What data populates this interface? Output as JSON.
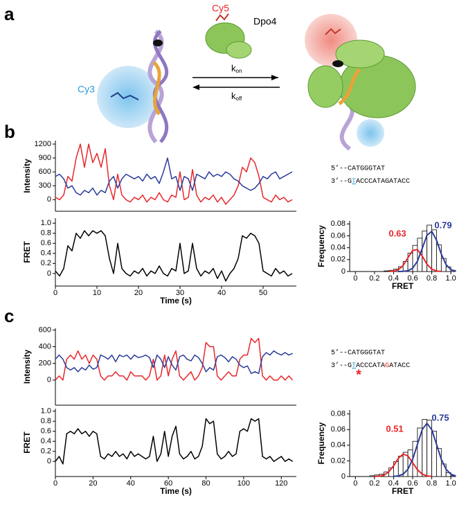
{
  "figure": {
    "panel_labels": [
      "a",
      "b",
      "c"
    ],
    "diagram": {
      "cy5": "Cy5",
      "dpo4": "Dpo4",
      "cy3": "Cy3",
      "k_on": [
        "k",
        "on"
      ],
      "k_off": [
        "k",
        "off"
      ]
    },
    "sequences": {
      "b": {
        "top": "5’--CATGGGTAT",
        "bottom": [
          "3’--G",
          "T",
          "ACCCATAGATACC"
        ]
      },
      "c": {
        "top": "5’--CATGGGTAT",
        "bottom": [
          "3’--G",
          "T",
          "ACCCATA",
          "G",
          "ATACC"
        ],
        "mark": "*"
      }
    }
  },
  "chart_data": [
    {
      "type": "line",
      "ylabel": "Intensity",
      "xlim": [
        0,
        58
      ],
      "ylim": [
        -250,
        1275
      ],
      "yticks": [
        0,
        300,
        600,
        900,
        1200
      ],
      "x": [
        0,
        1,
        2,
        3,
        4,
        5,
        6,
        7,
        8,
        9,
        10,
        11,
        12,
        13,
        14,
        15,
        16,
        17,
        18,
        19,
        20,
        21,
        22,
        23,
        24,
        25,
        26,
        27,
        28,
        29,
        30,
        31,
        32,
        33,
        34,
        35,
        36,
        37,
        38,
        39,
        40,
        41,
        42,
        43,
        44,
        45,
        46,
        47,
        48,
        49,
        50,
        51,
        52,
        53,
        54,
        55,
        56,
        57
      ],
      "series": [
        {
          "color": "#e8262a",
          "values": [
            50,
            0,
            100,
            500,
            400,
            900,
            1200,
            700,
            1200,
            800,
            1000,
            700,
            1100,
            300,
            0,
            550,
            100,
            0,
            -50,
            50,
            0,
            100,
            -50,
            50,
            0,
            150,
            0,
            -50,
            100,
            50,
            600,
            0,
            50,
            650,
            100,
            -50,
            50,
            0,
            100,
            -50,
            50,
            -100,
            0,
            100,
            300,
            700,
            600,
            900,
            800,
            500,
            50,
            0,
            -50,
            100,
            0,
            50,
            -50,
            0
          ]
        },
        {
          "color": "#2a3b9a",
          "values": [
            500,
            550,
            450,
            250,
            300,
            150,
            100,
            200,
            150,
            250,
            100,
            200,
            150,
            400,
            500,
            250,
            450,
            550,
            500,
            450,
            500,
            400,
            550,
            450,
            500,
            350,
            600,
            900,
            450,
            500,
            200,
            500,
            450,
            200,
            550,
            500,
            450,
            600,
            500,
            550,
            500,
            600,
            550,
            450,
            400,
            300,
            250,
            200,
            250,
            350,
            500,
            450,
            550,
            600,
            450,
            500,
            550,
            600
          ]
        }
      ]
    },
    {
      "type": "line",
      "ylabel": "FRET",
      "xlabel": "Time (s)",
      "xlim": [
        0,
        58
      ],
      "ylim": [
        -0.25,
        1.1
      ],
      "yticks": [
        0,
        0.2,
        0.4,
        0.6,
        0.8,
        {
          "value": 1,
          "label": "1.0"
        }
      ],
      "xticks": [
        0,
        10,
        20,
        30,
        40,
        50
      ],
      "x": [
        0,
        1,
        2,
        3,
        4,
        5,
        6,
        7,
        8,
        9,
        10,
        11,
        12,
        13,
        14,
        15,
        16,
        17,
        18,
        19,
        20,
        21,
        22,
        23,
        24,
        25,
        26,
        27,
        28,
        29,
        30,
        31,
        32,
        33,
        34,
        35,
        36,
        37,
        38,
        39,
        40,
        41,
        42,
        43,
        44,
        45,
        46,
        47,
        48,
        49,
        50,
        51,
        52,
        53,
        54,
        55,
        56,
        57
      ],
      "series": [
        {
          "color": "#000000",
          "values": [
            0.05,
            -0.05,
            0.1,
            0.55,
            0.45,
            0.8,
            0.7,
            0.85,
            0.75,
            0.85,
            0.8,
            0.85,
            0.75,
            0.3,
            0.0,
            0.6,
            0.1,
            0.0,
            -0.05,
            0.05,
            0.0,
            0.1,
            -0.05,
            0.05,
            0.0,
            0.15,
            0.0,
            -0.05,
            0.1,
            0.05,
            0.6,
            0.0,
            0.05,
            0.6,
            0.1,
            -0.05,
            0.05,
            0.0,
            0.1,
            -0.1,
            0.05,
            -0.15,
            0.0,
            0.1,
            0.3,
            0.75,
            0.7,
            0.8,
            0.75,
            0.6,
            0.05,
            0.0,
            -0.05,
            0.1,
            0.0,
            0.05,
            -0.05,
            0.0
          ]
        }
      ]
    },
    {
      "type": "histogram",
      "ylabel": "Frequency",
      "xlabel": "FRET",
      "xlim": [
        -0.06,
        1.05
      ],
      "ylim": [
        0,
        0.085
      ],
      "xticks": [
        0,
        0.2,
        0.4,
        0.6,
        0.8,
        {
          "value": 1,
          "label": "1.0"
        }
      ],
      "yticks": [
        0,
        0.02,
        0.04,
        0.06,
        0.08
      ],
      "bins": [
        0,
        0.05,
        0.1,
        0.15,
        0.2,
        0.25,
        0.3,
        0.35,
        0.4,
        0.45,
        0.5,
        0.55,
        0.6,
        0.65,
        0.7,
        0.75,
        0.8,
        0.85,
        0.9,
        0.95,
        1.0,
        1.05
      ],
      "values": [
        0,
        0,
        0,
        0,
        0,
        0,
        0.001,
        0.002,
        0.004,
        0.008,
        0.017,
        0.031,
        0.044,
        0.056,
        0.068,
        0.078,
        0.07,
        0.045,
        0.022,
        0.008,
        0.002
      ],
      "color": "#ffffff",
      "edgecolor": "#000000",
      "fits": [
        {
          "color": "#e8262a",
          "x": [
            0.35,
            0.4,
            0.45,
            0.5,
            0.55,
            0.6,
            0.65,
            0.7,
            0.75,
            0.8,
            0.85,
            0.9
          ],
          "values": [
            0.0001,
            0.0006,
            0.003,
            0.0101,
            0.023,
            0.0354,
            0.0368,
            0.0259,
            0.0123,
            0.004,
            0.0009,
            0.0001
          ]
        },
        {
          "color": "#2a3b9a",
          "x": [
            0.45,
            0.5,
            0.55,
            0.6,
            0.65,
            0.7,
            0.75,
            0.8,
            0.85,
            0.9,
            0.95,
            1.0,
            1.05
          ],
          "values": [
            0,
            0.0002,
            0.0013,
            0.0056,
            0.0175,
            0.0388,
            0.0609,
            0.0675,
            0.053,
            0.0294,
            0.0116,
            0.0032,
            0.0006
          ]
        }
      ],
      "annotations": [
        {
          "text": "0.63",
          "color": "#e8262a"
        },
        {
          "text": "0.79",
          "color": "#2a3b9a"
        }
      ]
    },
    {
      "type": "line",
      "ylabel": "Intensity",
      "xlim": [
        0,
        128
      ],
      "ylim": [
        -300,
        620
      ],
      "yticks": [
        0,
        200,
        400,
        600
      ],
      "x": [
        0,
        2,
        4,
        6,
        8,
        10,
        12,
        14,
        16,
        18,
        20,
        22,
        24,
        26,
        28,
        30,
        32,
        34,
        36,
        38,
        40,
        42,
        44,
        46,
        48,
        50,
        52,
        54,
        56,
        58,
        60,
        62,
        64,
        66,
        68,
        70,
        72,
        74,
        76,
        78,
        80,
        82,
        84,
        86,
        88,
        90,
        92,
        94,
        96,
        98,
        100,
        102,
        104,
        106,
        108,
        110,
        112,
        114,
        116,
        118,
        120,
        122,
        124,
        126
      ],
      "series": [
        {
          "color": "#e8262a",
          "values": [
            0,
            50,
            0,
            250,
            300,
            250,
            350,
            250,
            300,
            200,
            300,
            250,
            50,
            0,
            50,
            50,
            100,
            50,
            50,
            0,
            100,
            50,
            50,
            50,
            0,
            50,
            250,
            0,
            50,
            300,
            50,
            250,
            350,
            50,
            0,
            50,
            100,
            0,
            50,
            150,
            450,
            400,
            400,
            50,
            0,
            50,
            100,
            50,
            50,
            250,
            300,
            300,
            500,
            450,
            500,
            50,
            0,
            50,
            0,
            0,
            50,
            0,
            50,
            0
          ]
        },
        {
          "color": "#2a3b9a",
          "values": [
            250,
            300,
            250,
            150,
            120,
            150,
            100,
            150,
            120,
            180,
            130,
            150,
            300,
            280,
            250,
            300,
            220,
            300,
            280,
            300,
            250,
            300,
            270,
            280,
            300,
            270,
            150,
            300,
            250,
            150,
            280,
            180,
            120,
            280,
            300,
            250,
            230,
            300,
            270,
            200,
            100,
            150,
            120,
            280,
            300,
            270,
            220,
            280,
            250,
            180,
            150,
            170,
            80,
            100,
            80,
            280,
            330,
            300,
            350,
            320,
            300,
            330,
            300,
            320
          ]
        }
      ]
    },
    {
      "type": "line",
      "ylabel": "FRET",
      "xlabel": "Time (s)",
      "xlim": [
        0,
        128
      ],
      "ylim": [
        -0.3,
        1.05
      ],
      "yticks": [
        0,
        0.2,
        0.4,
        0.6,
        0.8,
        {
          "value": 1,
          "label": "1.0"
        }
      ],
      "xticks": [
        0,
        20,
        40,
        60,
        80,
        100,
        120
      ],
      "x": [
        0,
        2,
        4,
        6,
        8,
        10,
        12,
        14,
        16,
        18,
        20,
        22,
        24,
        26,
        28,
        30,
        32,
        34,
        36,
        38,
        40,
        42,
        44,
        46,
        48,
        50,
        52,
        54,
        56,
        58,
        60,
        62,
        64,
        66,
        68,
        70,
        72,
        74,
        76,
        78,
        80,
        82,
        84,
        86,
        88,
        90,
        92,
        94,
        96,
        98,
        100,
        102,
        104,
        106,
        108,
        110,
        112,
        114,
        116,
        118,
        120,
        122,
        124,
        126
      ],
      "series": [
        {
          "color": "#000000",
          "values": [
            0.0,
            0.1,
            -0.05,
            0.55,
            0.6,
            0.55,
            0.65,
            0.55,
            0.6,
            0.5,
            0.6,
            0.55,
            0.1,
            0.05,
            0.15,
            0.1,
            0.2,
            0.1,
            0.15,
            0.05,
            0.2,
            0.1,
            0.15,
            0.1,
            0.05,
            0.1,
            0.5,
            0.0,
            0.15,
            0.6,
            0.1,
            0.5,
            0.7,
            0.15,
            0.05,
            0.1,
            0.2,
            0.05,
            0.1,
            0.3,
            0.85,
            0.75,
            0.8,
            0.15,
            0.05,
            0.1,
            0.2,
            0.1,
            0.15,
            0.6,
            0.65,
            0.6,
            0.85,
            0.8,
            0.85,
            0.1,
            0.05,
            0.1,
            0.0,
            0.05,
            0.1,
            0.0,
            0.05,
            0.0
          ]
        }
      ]
    },
    {
      "type": "histogram",
      "ylabel": "Frequency",
      "xlabel": "FRET",
      "xlim": [
        -0.06,
        1.05
      ],
      "ylim": [
        0,
        0.085
      ],
      "xticks": [
        0,
        0.2,
        0.4,
        0.6,
        0.8,
        {
          "value": 1,
          "label": "1.0"
        }
      ],
      "yticks": [
        0,
        0.02,
        0.04,
        0.06,
        0.08
      ],
      "bins": [
        0,
        0.05,
        0.1,
        0.15,
        0.2,
        0.25,
        0.3,
        0.35,
        0.4,
        0.45,
        0.5,
        0.55,
        0.6,
        0.65,
        0.7,
        0.75,
        0.8,
        0.85,
        0.9,
        0.95,
        1.0,
        1.05
      ],
      "values": [
        0,
        0,
        0,
        0.001,
        0.002,
        0.003,
        0.006,
        0.011,
        0.019,
        0.026,
        0.031,
        0.034,
        0.045,
        0.062,
        0.073,
        0.072,
        0.058,
        0.036,
        0.016,
        0.005,
        0.001
      ],
      "color": "#ffffff",
      "edgecolor": "#000000",
      "fits": [
        {
          "color": "#e8262a",
          "x": [
            0.2,
            0.25,
            0.3,
            0.35,
            0.4,
            0.45,
            0.5,
            0.55,
            0.6,
            0.65,
            0.7,
            0.75,
            0.8
          ],
          "values": [
            0.0001,
            0.0004,
            0.0019,
            0.006,
            0.0137,
            0.0232,
            0.0288,
            0.0263,
            0.0176,
            0.0086,
            0.0031,
            0.0008,
            0.0002
          ]
        },
        {
          "color": "#2a3b9a",
          "x": [
            0.4,
            0.45,
            0.5,
            0.55,
            0.6,
            0.65,
            0.7,
            0.75,
            0.8,
            0.85,
            0.9,
            0.95,
            1.0,
            1.05
          ],
          "values": [
            0.0002,
            0.0008,
            0.003,
            0.0092,
            0.0221,
            0.0413,
            0.06,
            0.068,
            0.06,
            0.0413,
            0.0221,
            0.0092,
            0.003,
            0.0008
          ]
        }
      ],
      "annotations": [
        {
          "text": "0.51",
          "color": "#e8262a"
        },
        {
          "text": "0.75",
          "color": "#2a3b9a"
        }
      ]
    }
  ]
}
